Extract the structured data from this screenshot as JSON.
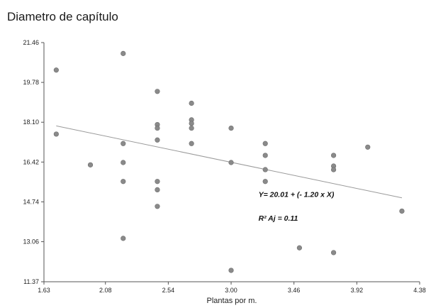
{
  "chart_data": {
    "type": "scatter",
    "title": "Diametro de capítulo",
    "xlabel": "Plantas por m.",
    "ylabel": "",
    "xlim": [
      1.63,
      4.38
    ],
    "ylim": [
      11.37,
      21.46
    ],
    "xticks": [
      "1.63",
      "2.08",
      "2.54",
      "3.00",
      "3.46",
      "3.92",
      "4.38"
    ],
    "yticks": [
      "11.37",
      "13.06",
      "14.74",
      "16.42",
      "18.10",
      "19.78",
      "21.46"
    ],
    "grid": false,
    "points": [
      {
        "x": 1.72,
        "y": 20.3
      },
      {
        "x": 1.72,
        "y": 17.6
      },
      {
        "x": 1.97,
        "y": 16.3
      },
      {
        "x": 2.21,
        "y": 21.0
      },
      {
        "x": 2.21,
        "y": 17.2
      },
      {
        "x": 2.21,
        "y": 16.4
      },
      {
        "x": 2.21,
        "y": 15.6
      },
      {
        "x": 2.21,
        "y": 13.2
      },
      {
        "x": 2.46,
        "y": 19.4
      },
      {
        "x": 2.46,
        "y": 18.0
      },
      {
        "x": 2.46,
        "y": 17.85
      },
      {
        "x": 2.46,
        "y": 17.35
      },
      {
        "x": 2.46,
        "y": 15.6
      },
      {
        "x": 2.46,
        "y": 15.25
      },
      {
        "x": 2.46,
        "y": 14.55
      },
      {
        "x": 2.71,
        "y": 18.9
      },
      {
        "x": 2.71,
        "y": 18.2
      },
      {
        "x": 2.71,
        "y": 18.05
      },
      {
        "x": 2.71,
        "y": 17.85
      },
      {
        "x": 2.71,
        "y": 17.2
      },
      {
        "x": 3.0,
        "y": 17.85
      },
      {
        "x": 3.0,
        "y": 16.4
      },
      {
        "x": 3.0,
        "y": 11.85
      },
      {
        "x": 3.25,
        "y": 17.2
      },
      {
        "x": 3.25,
        "y": 16.7
      },
      {
        "x": 3.25,
        "y": 16.1
      },
      {
        "x": 3.25,
        "y": 15.6
      },
      {
        "x": 3.5,
        "y": 12.8
      },
      {
        "x": 3.75,
        "y": 16.7
      },
      {
        "x": 3.75,
        "y": 16.25
      },
      {
        "x": 3.75,
        "y": 16.1
      },
      {
        "x": 3.75,
        "y": 12.6
      },
      {
        "x": 4.0,
        "y": 17.05
      },
      {
        "x": 4.25,
        "y": 14.35
      }
    ],
    "trendline": {
      "intercept": 20.01,
      "slope": -1.2,
      "x_start": 1.72,
      "x_end": 4.25
    },
    "annotations": [
      "Y= 20.01 + (- 1.20 x X)",
      "R² Aj = 0.11"
    ],
    "colors": {
      "point": "#8a8a8a",
      "point_edge": "#6e6e6e",
      "trend": "#9a9a9a",
      "axis": "#555555"
    }
  }
}
